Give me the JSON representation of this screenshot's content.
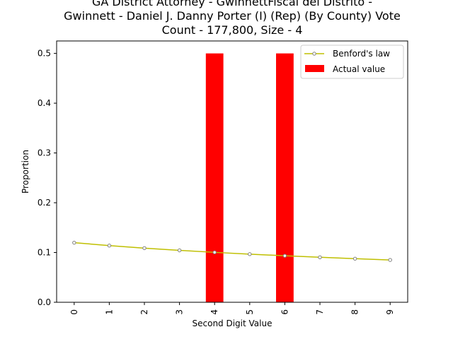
{
  "chart_data": {
    "type": "bar",
    "title_lines": [
      "GA District Attorney - GwinnettFiscal del Distrito -",
      "Gwinnett - Daniel J. Danny Porter (I) (Rep) (By County) Vote",
      "Count - 177,800, Size - 4"
    ],
    "xlabel": "Second Digit Value",
    "ylabel": "Proportion",
    "categories": [
      "0",
      "1",
      "2",
      "3",
      "4",
      "5",
      "6",
      "7",
      "8",
      "9"
    ],
    "x_tick_labels": [
      "0",
      "1",
      "2",
      "3",
      "4",
      "5",
      "6",
      "7",
      "8",
      "9"
    ],
    "yticks": [
      "0.0",
      "0.1",
      "0.2",
      "0.3",
      "0.4",
      "0.5"
    ],
    "ylim": [
      0,
      0.5
    ],
    "grid": false,
    "legend_placement": "top-right",
    "series": [
      {
        "name": "Benford's law",
        "type": "line",
        "color": "#bfbf00",
        "marker_color": "#808080",
        "values": [
          0.1197,
          0.1139,
          0.1088,
          0.1043,
          0.1003,
          0.0967,
          0.0934,
          0.0904,
          0.0876,
          0.085
        ]
      },
      {
        "name": "Actual value",
        "type": "bar",
        "color": "#ff0000",
        "values": [
          0,
          0,
          0,
          0,
          0.5,
          0,
          0.5,
          0,
          0,
          0
        ]
      }
    ]
  }
}
